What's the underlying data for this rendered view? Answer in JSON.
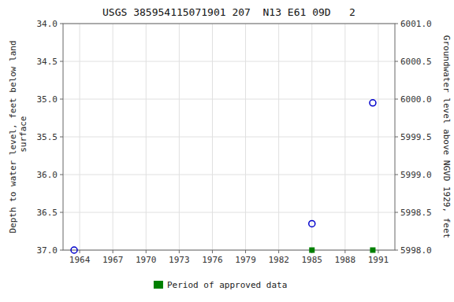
{
  "chart_data": {
    "type": "scatter",
    "title": "USGS 385954115071901 207  N13 E61 09D   2",
    "ylabel": "Depth to water level, feet below land\n surface",
    "y2label": "Groundwater level above NGVD 1929, feet",
    "xlim": [
      1962.5,
      1992.5
    ],
    "ylim": [
      37.0,
      34.0
    ],
    "y2lim": [
      5998.0,
      6001.0
    ],
    "xticks": [
      1964,
      1967,
      1970,
      1973,
      1976,
      1979,
      1982,
      1985,
      1988,
      1991
    ],
    "yticks": [
      {
        "value": 34.0,
        "label": "34.0"
      },
      34.5,
      {
        "value": 35.0,
        "label": "35.0"
      },
      35.5,
      {
        "value": 36.0,
        "label": "36.0"
      },
      36.5,
      {
        "value": 37.0,
        "label": "37.0"
      }
    ],
    "y2ticks": [
      {
        "value": 6001.0,
        "label": "6001.0"
      },
      6000.5,
      {
        "value": 6000.0,
        "label": "6000.0"
      },
      5999.5,
      {
        "value": 5999.0,
        "label": "5999.0"
      },
      5998.5,
      {
        "value": 5998.0,
        "label": "5998.0"
      }
    ],
    "grid": true,
    "legend": "bottom",
    "series": [
      {
        "x": [
          1963.5,
          1985.0,
          1990.5
        ],
        "values": [
          37.0,
          36.65,
          35.05
        ],
        "color": "#0000cc",
        "marker": "open-circle"
      },
      {
        "name": "Period of approved data",
        "x": [
          1985.0,
          1990.5
        ],
        "values": [
          37.0,
          37.0
        ],
        "color": "#008000",
        "marker": "square"
      }
    ]
  }
}
